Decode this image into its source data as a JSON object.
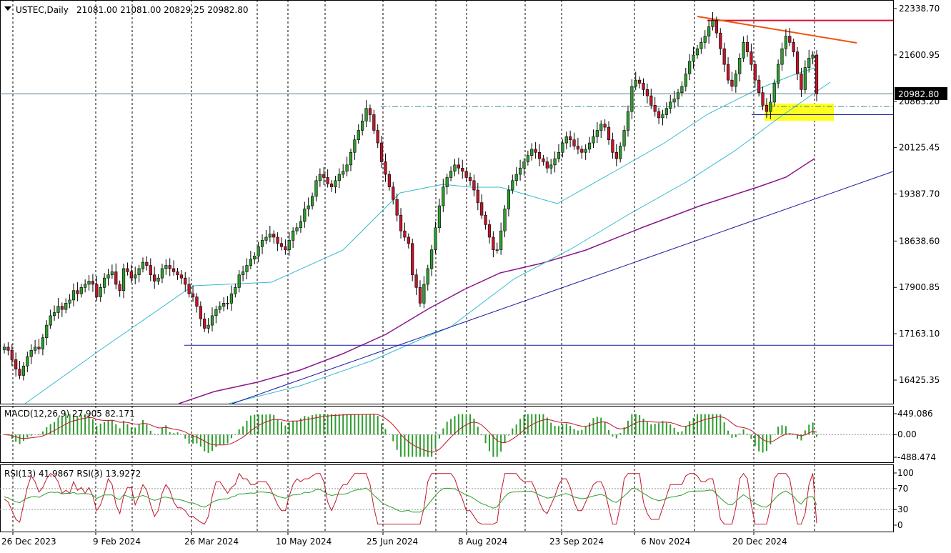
{
  "header": {
    "symbol_label": "USTEC,Daily",
    "ohlc_label": "21081.00 21081.00 20829.25 20982.80"
  },
  "macd_panel": {
    "label": "MACD(12,26,9) 27.905 82.171",
    "axis_ticks": [
      "449.086",
      "0.00",
      "-488.474"
    ]
  },
  "rsi_panel": {
    "label": "RSI(13) 41.9867  RSI(3) 13.9272",
    "axis_ticks": [
      "100",
      "70",
      "30",
      "0"
    ]
  },
  "chart_data": {
    "type": "candlestick",
    "symbol": "USTEC",
    "timeframe": "Daily",
    "last_price": "20982.80",
    "price_axis_ticks": [
      "22338.70",
      "21600.95",
      "20863.20",
      "20125.45",
      "19387.70",
      "18638.60",
      "17900.85",
      "17163.10",
      "16425.35"
    ],
    "date_axis_ticks": [
      "26 Dec 2023",
      "9 Feb 2024",
      "26 Mar 2024",
      "10 May 2024",
      "25 Jun 2024",
      "8 Aug 2024",
      "23 Sep 2024",
      "6 Nov 2024",
      "20 Dec 2024"
    ],
    "key_levels": {
      "resistance_red": 22150,
      "support_blue": 20650,
      "support_lower_blue": 16980,
      "dash_dot_level": 20780
    },
    "price_series": [
      16950,
      16900,
      16750,
      16600,
      16500,
      16650,
      16800,
      16900,
      16950,
      16920,
      17100,
      17300,
      17450,
      17500,
      17600,
      17550,
      17650,
      17700,
      17850,
      17800,
      17900,
      17950,
      18000,
      17950,
      17750,
      17900,
      18050,
      18100,
      18150,
      17950,
      17850,
      18200,
      18150,
      18050,
      18100,
      18200,
      18300,
      18250,
      18100,
      18000,
      18050,
      18200,
      18250,
      18200,
      18150,
      18100,
      18050,
      17950,
      17800,
      17750,
      17600,
      17400,
      17250,
      17300,
      17450,
      17550,
      17600,
      17650,
      17650,
      17800,
      17900,
      18100,
      18150,
      18250,
      18350,
      18400,
      18550,
      18650,
      18700,
      18750,
      18700,
      18600,
      18550,
      18500,
      18650,
      18800,
      18850,
      18950,
      19150,
      19200,
      19350,
      19600,
      19700,
      19650,
      19550,
      19500,
      19600,
      19700,
      19750,
      19850,
      20050,
      20250,
      20400,
      20550,
      20750,
      20650,
      20400,
      20200,
      19900,
      19700,
      19500,
      19300,
      19050,
      18800,
      18700,
      18600,
      18100,
      17900,
      17650,
      17950,
      18200,
      18500,
      18850,
      19200,
      19500,
      19650,
      19750,
      19850,
      19800,
      19750,
      19650,
      19600,
      19450,
      19250,
      19050,
      18900,
      18700,
      18500,
      18500,
      18800,
      19150,
      19450,
      19600,
      19700,
      19800,
      19900,
      20000,
      20100,
      20050,
      19950,
      19900,
      19800,
      19850,
      19950,
      20050,
      20200,
      20300,
      20250,
      20150,
      20100,
      20050,
      20100,
      20200,
      20300,
      20400,
      20500,
      20450,
      20250,
      20050,
      19950,
      20150,
      20400,
      20700,
      21100,
      21200,
      21150,
      21050,
      20950,
      20800,
      20700,
      20600,
      20650,
      20750,
      20850,
      20900,
      21000,
      21100,
      21300,
      21500,
      21600,
      21700,
      21800,
      21900,
      22050,
      22150,
      21950,
      21700,
      21450,
      21200,
      21100,
      21300,
      21550,
      21800,
      21650,
      21450,
      21200,
      21000,
      20800,
      20700,
      20850,
      21150,
      21450,
      21700,
      21900,
      21800,
      21650,
      21300,
      21050,
      21400,
      21550,
      21600,
      20982.8
    ],
    "macd": {
      "label": "MACD(12,26,9)",
      "value": 27.905,
      "signal": 82.171
    },
    "rsi": {
      "rsi13": 41.9867,
      "rsi3": 13.9272,
      "levels": [
        70,
        30
      ]
    },
    "colors": {
      "bull_candle": "#2e9c2e",
      "bear_candle": "#c0162a",
      "ma_fast": "#33bbcc",
      "ma_slow": "#8b158b",
      "trend_line": "#1a1aa6",
      "resistance": "#dd1133",
      "descending_line": "#ee5511",
      "highlight": "#ffff22",
      "grid": "#000000"
    }
  }
}
